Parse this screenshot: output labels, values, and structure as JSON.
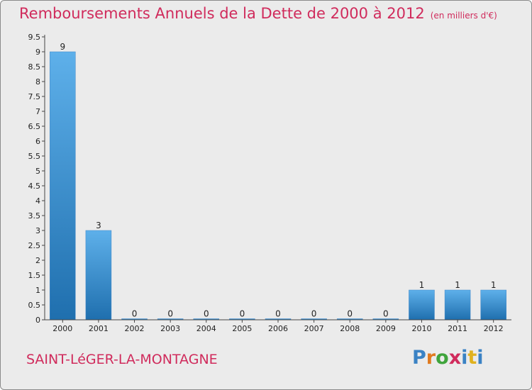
{
  "header": {
    "title": "Remboursements Annuels de la Dette de 2000 à 2012",
    "unit": "(en milliers d'€)"
  },
  "commune": "SAINT-LéGER-LA-MONTAGNE",
  "logo": {
    "text": "Proxiti"
  },
  "colors": {
    "title": "#d02b5c",
    "bar_light": "#5eb0ea",
    "bar_dark": "#1f6fae",
    "background": "#ebebeb"
  },
  "chart_data": {
    "type": "bar",
    "categories": [
      "2000",
      "2001",
      "2002",
      "2003",
      "2004",
      "2005",
      "2006",
      "2007",
      "2008",
      "2009",
      "2010",
      "2011",
      "2012"
    ],
    "values": [
      9,
      3,
      0,
      0,
      0,
      0,
      0,
      0,
      0,
      0,
      1,
      1,
      1
    ],
    "data_labels": [
      "9",
      "3",
      "0",
      "0",
      "0",
      "0",
      "0",
      "0",
      "0",
      "0",
      "1",
      "1",
      "1"
    ],
    "ylim": [
      0,
      9.5
    ],
    "yticks": [
      0,
      0.5,
      1,
      1.5,
      2,
      2.5,
      3,
      3.5,
      4,
      4.5,
      5,
      5.5,
      6,
      6.5,
      7,
      7.5,
      8,
      8.5,
      9,
      9.5
    ],
    "ytick_labels": [
      "0",
      "0.5",
      "1",
      "1.5",
      "2",
      "2.5",
      "3",
      "3.5",
      "4",
      "4.5",
      "5",
      "5.5",
      "6",
      "6.5",
      "7",
      "7.5",
      "8",
      "8.5",
      "9",
      "9.5"
    ],
    "grid": false
  }
}
